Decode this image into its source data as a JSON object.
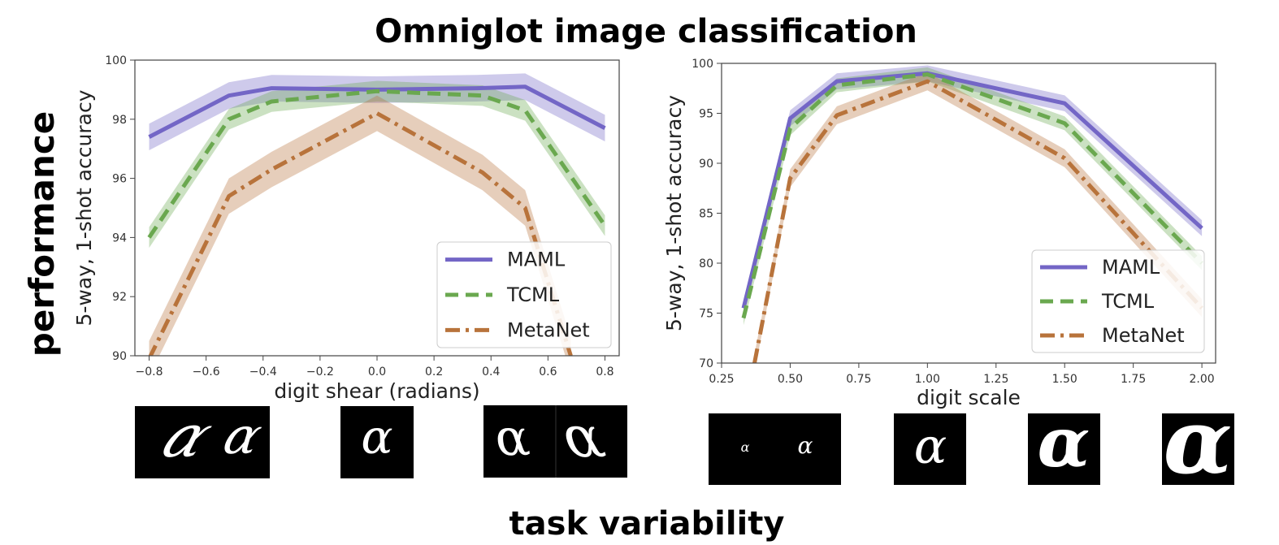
{
  "slide": {
    "title": "Omniglot image classification",
    "side_label": "performance",
    "bottom_label": "task variability"
  },
  "colors": {
    "MAML": "#7366c6",
    "TCML": "#6aa84f",
    "MetaNet": "#b8733b"
  },
  "chart_data": [
    {
      "type": "line",
      "xlabel": "digit shear (radians)",
      "ylabel": "5-way, 1-shot accuracy",
      "xlim": [
        -0.85,
        0.85
      ],
      "ylim": [
        90,
        100
      ],
      "xticks": [
        -0.8,
        -0.6,
        -0.4,
        -0.2,
        0.0,
        0.2,
        0.4,
        0.6,
        0.8
      ],
      "xtick_labels": [
        "−0.8",
        "−0.6",
        "−0.4",
        "−0.2",
        "0.0",
        "0.2",
        "0.4",
        "0.6",
        "0.8"
      ],
      "yticks": [
        90,
        92,
        94,
        96,
        98,
        100
      ],
      "ytick_labels": [
        "90",
        "92",
        "94",
        "96",
        "98",
        "100"
      ],
      "legend_position": "lower-right",
      "grid": false,
      "series": [
        {
          "name": "MAML",
          "style": "solid",
          "x": [
            -0.8,
            -0.52,
            -0.37,
            0.0,
            0.35,
            0.52,
            0.8
          ],
          "y": [
            97.4,
            98.8,
            99.05,
            99.0,
            99.05,
            99.1,
            97.7
          ],
          "band": 0.45
        },
        {
          "name": "TCML",
          "style": "dashed",
          "x": [
            -0.8,
            -0.52,
            -0.37,
            0.0,
            0.37,
            0.52,
            0.8
          ],
          "y": [
            94.0,
            98.0,
            98.6,
            98.95,
            98.8,
            98.3,
            94.4
          ],
          "band": 0.35
        },
        {
          "name": "MetaNet",
          "style": "dashdot",
          "x": [
            -0.8,
            -0.52,
            -0.37,
            0.0,
            0.37,
            0.52,
            0.68
          ],
          "y": [
            89.9,
            95.4,
            96.3,
            98.2,
            96.2,
            95.0,
            90.0
          ],
          "band": 0.6
        }
      ]
    },
    {
      "type": "line",
      "xlabel": "digit scale",
      "ylabel": "5-way, 1-shot accuracy",
      "xlim": [
        0.25,
        2.05
      ],
      "ylim": [
        70,
        100
      ],
      "xticks": [
        0.25,
        0.5,
        0.75,
        1.0,
        1.25,
        1.5,
        1.75,
        2.0
      ],
      "xtick_labels": [
        "0.25",
        "0.50",
        "0.75",
        "1.00",
        "1.25",
        "1.50",
        "1.75",
        "2.00"
      ],
      "yticks": [
        70,
        75,
        80,
        85,
        90,
        95,
        100
      ],
      "ytick_labels": [
        "70",
        "75",
        "80",
        "85",
        "90",
        "95",
        "100"
      ],
      "legend_position": "lower-right",
      "grid": false,
      "series": [
        {
          "name": "MAML",
          "style": "solid",
          "x": [
            0.33,
            0.5,
            0.67,
            1.0,
            1.5,
            2.0
          ],
          "y": [
            75.5,
            94.5,
            98.2,
            99.0,
            96.0,
            83.5
          ],
          "band": 0.8
        },
        {
          "name": "TCML",
          "style": "dashed",
          "x": [
            0.33,
            0.5,
            0.67,
            1.0,
            1.5,
            2.0
          ],
          "y": [
            74.5,
            93.5,
            97.8,
            98.9,
            94.0,
            80.0
          ],
          "band": 0.7
        },
        {
          "name": "MetaNet",
          "style": "dashdot",
          "x": [
            0.37,
            0.5,
            0.67,
            1.0,
            1.5,
            2.0
          ],
          "y": [
            70.0,
            88.5,
            94.8,
            98.2,
            90.5,
            75.5
          ],
          "band": 0.9
        }
      ]
    }
  ],
  "thumbnails": {
    "glyph": "α"
  }
}
